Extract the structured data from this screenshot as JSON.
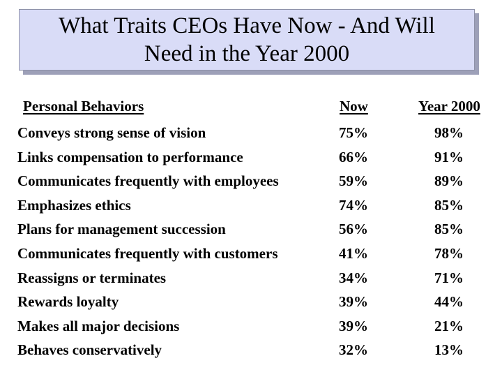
{
  "title": {
    "line1": "What Traits CEOs Have Now - And Will",
    "line2": "Need in the Year 2000"
  },
  "table": {
    "headers": {
      "label": "Personal Behaviors",
      "now": "Now",
      "year2000": "Year 2000"
    },
    "rows": [
      {
        "label": "Conveys strong sense of vision",
        "now": "75%",
        "year2000": "98%"
      },
      {
        "label": "Links compensation to performance",
        "now": "66%",
        "year2000": "91%"
      },
      {
        "label": "Communicates frequently with employees",
        "now": "59%",
        "year2000": "89%"
      },
      {
        "label": "Emphasizes ethics",
        "now": "74%",
        "year2000": "85%"
      },
      {
        "label": "Plans for management succession",
        "now": "56%",
        "year2000": "85%"
      },
      {
        "label": "Communicates frequently with customers",
        "now": "41%",
        "year2000": "78%"
      },
      {
        "label": "Reassigns or terminates",
        "now": "34%",
        "year2000": "71%"
      },
      {
        "label": "Rewards loyalty",
        "now": "39%",
        "year2000": "44%"
      },
      {
        "label": "Makes all major decisions",
        "now": "39%",
        "year2000": "21%"
      },
      {
        "label": "Behaves conservatively",
        "now": "32%",
        "year2000": "13%"
      }
    ]
  },
  "colors": {
    "title_bg": "#d9dcf7",
    "title_shadow": "#9da0b8",
    "text": "#000000"
  }
}
